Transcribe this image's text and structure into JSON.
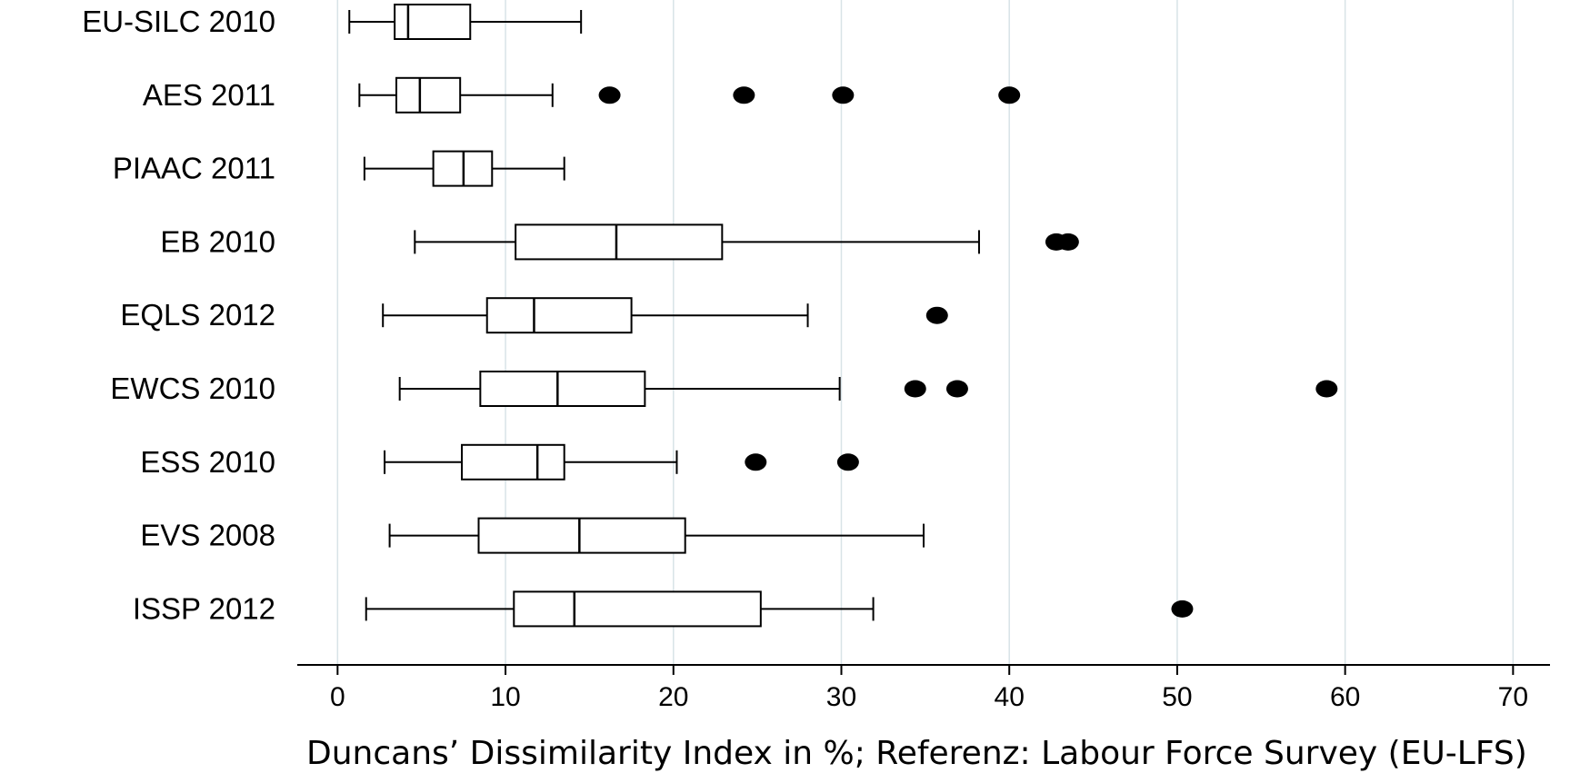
{
  "chart_data": {
    "type": "boxplot",
    "orientation": "horizontal",
    "title": "",
    "xlabel": "Duncans’ Dissimilarity Index in %;  Referenz: Labour Force Survey (EU-LFS)",
    "ylabel": "",
    "xlim": [
      -2.4,
      72.2
    ],
    "xticks": [
      0,
      10,
      20,
      30,
      40,
      50,
      60,
      70
    ],
    "grid": true,
    "legend": "none",
    "colors": {
      "grid": "#d8e3e7",
      "box_stroke": "#000000",
      "outlier": "#000000",
      "background": "#ffffff"
    },
    "categories": [
      "EU-SILC 2010",
      "AES 2011",
      "PIAAC 2011",
      "EB 2010",
      "EQLS 2012",
      "EWCS 2010",
      "ESS 2010",
      "EVS 2008",
      "ISSP 2012"
    ],
    "boxes": [
      {
        "label": "EU-SILC 2010",
        "whisker_low": 0.7,
        "q1": 3.4,
        "median": 4.2,
        "q3": 7.9,
        "whisker_high": 14.5,
        "outliers": []
      },
      {
        "label": "AES 2011",
        "whisker_low": 1.3,
        "q1": 3.5,
        "median": 4.9,
        "q3": 7.3,
        "whisker_high": 12.8,
        "outliers": [
          16.2,
          24.2,
          30.1,
          40.0
        ]
      },
      {
        "label": "PIAAC 2011",
        "whisker_low": 1.6,
        "q1": 5.7,
        "median": 7.5,
        "q3": 9.2,
        "whisker_high": 13.5,
        "outliers": []
      },
      {
        "label": "EB 2010",
        "whisker_low": 4.6,
        "q1": 10.6,
        "median": 16.6,
        "q3": 22.9,
        "whisker_high": 38.2,
        "outliers": [
          42.8,
          43.5
        ]
      },
      {
        "label": "EQLS 2012",
        "whisker_low": 2.7,
        "q1": 8.9,
        "median": 11.7,
        "q3": 17.5,
        "whisker_high": 28.0,
        "outliers": [
          35.7
        ]
      },
      {
        "label": "EWCS 2010",
        "whisker_low": 3.7,
        "q1": 8.5,
        "median": 13.1,
        "q3": 18.3,
        "whisker_high": 29.9,
        "outliers": [
          34.4,
          36.9,
          58.9
        ]
      },
      {
        "label": "ESS 2010",
        "whisker_low": 2.8,
        "q1": 7.4,
        "median": 11.9,
        "q3": 13.5,
        "whisker_high": 20.2,
        "outliers": [
          24.9,
          30.4
        ]
      },
      {
        "label": "EVS 2008",
        "whisker_low": 3.1,
        "q1": 8.4,
        "median": 14.4,
        "q3": 20.7,
        "whisker_high": 34.9,
        "outliers": []
      },
      {
        "label": "ISSP 2012",
        "whisker_low": 1.7,
        "q1": 10.5,
        "median": 14.1,
        "q3": 25.2,
        "whisker_high": 31.9,
        "outliers": [
          50.3
        ]
      }
    ]
  }
}
